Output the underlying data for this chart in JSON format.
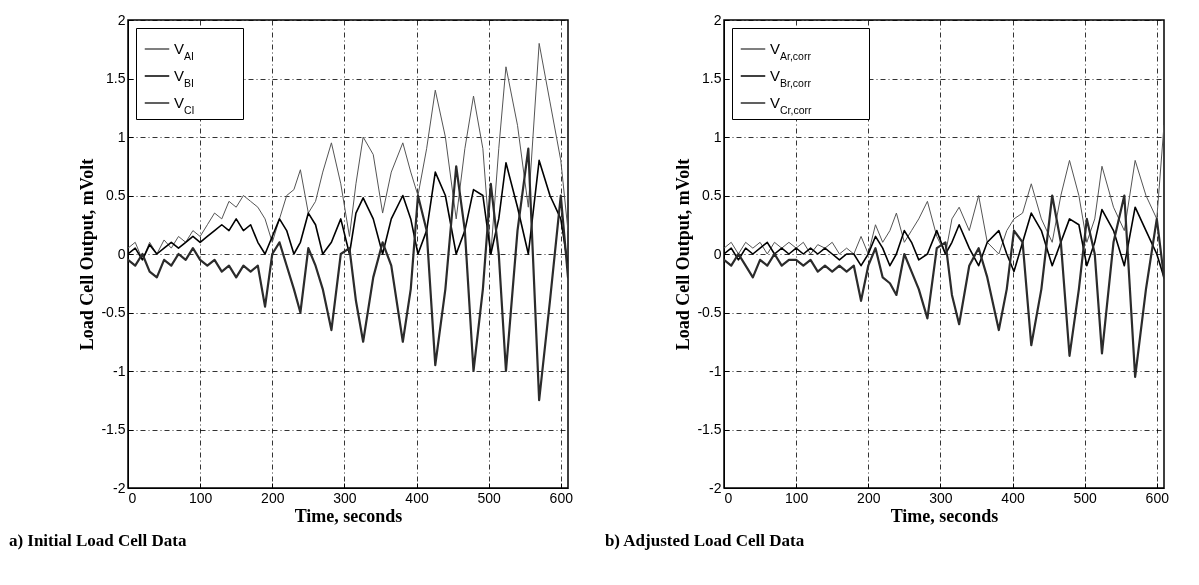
{
  "chart_data": [
    {
      "type": "line",
      "title": "a) Initial Load Cell Data",
      "xlabel": "Time, seconds",
      "ylabel": "Load Cell Output, mVolt",
      "xlim": [
        0,
        610
      ],
      "xticks": [
        0,
        100,
        200,
        300,
        400,
        500,
        600
      ],
      "ylim": [
        -2,
        2
      ],
      "yticks": [
        -2,
        -1.5,
        -1,
        -0.5,
        0,
        0.5,
        1,
        1.5,
        2
      ],
      "grid": true,
      "legend": "top left",
      "x": [
        0,
        10,
        20,
        30,
        40,
        50,
        60,
        70,
        80,
        90,
        100,
        110,
        120,
        130,
        140,
        150,
        160,
        170,
        180,
        190,
        200,
        210,
        220,
        230,
        239,
        250,
        260,
        270,
        282,
        295,
        307,
        316,
        326,
        340,
        353,
        365,
        381,
        392,
        402,
        414,
        426,
        440,
        455,
        467,
        479,
        492,
        503,
        514,
        524,
        540,
        555,
        570,
        585,
        600,
        610
      ],
      "series": [
        {
          "name": "V$_{AI}$",
          "color": "#555555",
          "values": [
            0.05,
            0.1,
            -0.05,
            0.1,
            0.0,
            0.12,
            0.05,
            0.15,
            0.1,
            0.2,
            0.15,
            0.25,
            0.35,
            0.3,
            0.45,
            0.4,
            0.5,
            0.45,
            0.4,
            0.3,
            0.1,
            0.3,
            0.5,
            0.55,
            0.72,
            0.35,
            0.45,
            0.7,
            0.95,
            0.6,
            0.15,
            0.6,
            1.0,
            0.85,
            0.35,
            0.7,
            0.95,
            0.7,
            0.5,
            0.9,
            1.4,
            1.0,
            0.3,
            0.9,
            1.35,
            0.9,
            0.0,
            0.9,
            1.6,
            1.1,
            0.4,
            1.8,
            1.3,
            0.8,
            0.2
          ]
        },
        {
          "name": "V$_{BI}$",
          "color": "#000000",
          "values": [
            0.0,
            0.05,
            -0.05,
            0.08,
            0.0,
            0.05,
            0.1,
            0.05,
            0.1,
            0.15,
            0.1,
            0.15,
            0.2,
            0.25,
            0.2,
            0.3,
            0.2,
            0.25,
            0.1,
            0.0,
            0.15,
            0.3,
            0.2,
            0.0,
            0.1,
            0.35,
            0.25,
            0.0,
            0.1,
            0.3,
            0.0,
            0.35,
            0.48,
            0.3,
            0.0,
            0.3,
            0.5,
            0.3,
            0.0,
            0.2,
            0.7,
            0.5,
            0.0,
            0.2,
            0.55,
            0.5,
            0.0,
            0.3,
            0.78,
            0.4,
            0.0,
            0.8,
            0.5,
            0.3,
            -0.1
          ]
        },
        {
          "name": "V$_{CI}$",
          "color": "#2b2b2b",
          "values": [
            -0.05,
            -0.1,
            0.0,
            -0.15,
            -0.2,
            -0.05,
            -0.1,
            0.0,
            -0.05,
            0.05,
            -0.05,
            -0.1,
            -0.05,
            -0.15,
            -0.1,
            -0.2,
            -0.1,
            -0.15,
            -0.1,
            -0.45,
            0.0,
            0.1,
            -0.1,
            -0.3,
            -0.5,
            0.05,
            -0.1,
            -0.3,
            -0.65,
            0.0,
            0.05,
            -0.4,
            -0.75,
            -0.2,
            0.1,
            -0.1,
            -0.75,
            -0.3,
            0.5,
            0.2,
            -0.95,
            -0.3,
            0.75,
            0.2,
            -1.0,
            -0.3,
            0.6,
            0.0,
            -1.0,
            0.2,
            0.9,
            -1.25,
            -0.4,
            0.5,
            -0.2
          ]
        }
      ]
    },
    {
      "type": "line",
      "title": "b) Adjusted Load Cell Data",
      "xlabel": "Time, seconds",
      "ylabel": "Load Cell Output, mVolt",
      "xlim": [
        0,
        610
      ],
      "xticks": [
        0,
        100,
        200,
        300,
        400,
        500,
        600
      ],
      "ylim": [
        -2,
        2
      ],
      "yticks": [
        -2,
        -1.5,
        -1,
        -0.5,
        0,
        0.5,
        1,
        1.5,
        2
      ],
      "grid": true,
      "legend": "top left",
      "x": [
        0,
        10,
        20,
        30,
        40,
        50,
        60,
        70,
        80,
        90,
        100,
        110,
        120,
        130,
        140,
        150,
        160,
        170,
        180,
        190,
        200,
        210,
        220,
        230,
        239,
        250,
        260,
        270,
        282,
        295,
        307,
        316,
        326,
        340,
        353,
        365,
        381,
        392,
        402,
        414,
        426,
        440,
        455,
        467,
        479,
        492,
        503,
        514,
        524,
        540,
        555,
        570,
        585,
        600,
        610
      ],
      "series": [
        {
          "name": "V$_{Ar,corr}$",
          "color": "#555555",
          "values": [
            0.05,
            0.1,
            0.0,
            0.1,
            0.05,
            0.1,
            0.0,
            0.1,
            0.05,
            0.1,
            0.05,
            0.1,
            0.0,
            0.08,
            0.05,
            0.1,
            0.0,
            0.05,
            0.0,
            0.15,
            0.0,
            0.25,
            0.1,
            0.2,
            0.35,
            0.1,
            0.2,
            0.3,
            0.45,
            0.15,
            0.0,
            0.3,
            0.4,
            0.2,
            0.5,
            0.1,
            0.0,
            0.2,
            0.3,
            0.35,
            0.6,
            0.3,
            0.1,
            0.5,
            0.8,
            0.5,
            0.1,
            0.3,
            0.75,
            0.4,
            0.2,
            0.8,
            0.5,
            0.3,
            1.1
          ]
        },
        {
          "name": "V$_{Br,corr}$",
          "color": "#000000",
          "values": [
            0.0,
            0.05,
            -0.05,
            0.05,
            0.0,
            0.05,
            0.1,
            0.0,
            0.05,
            0.0,
            0.05,
            0.0,
            0.05,
            0.0,
            0.05,
            0.0,
            -0.05,
            0.0,
            0.0,
            -0.1,
            0.0,
            0.15,
            0.05,
            -0.1,
            0.0,
            0.2,
            0.1,
            -0.05,
            0.0,
            0.2,
            0.0,
            0.1,
            0.25,
            0.05,
            -0.1,
            0.1,
            0.2,
            0.0,
            -0.15,
            0.1,
            0.35,
            0.2,
            -0.1,
            0.1,
            0.3,
            0.25,
            -0.1,
            0.1,
            0.38,
            0.2,
            -0.1,
            0.4,
            0.2,
            0.0,
            -0.2
          ]
        },
        {
          "name": "V$_{Cr,corr}$",
          "color": "#2b2b2b",
          "values": [
            -0.05,
            -0.1,
            0.0,
            -0.1,
            -0.2,
            -0.05,
            -0.1,
            0.0,
            -0.1,
            -0.05,
            -0.05,
            -0.1,
            -0.05,
            -0.15,
            -0.1,
            -0.15,
            -0.1,
            -0.15,
            -0.1,
            -0.4,
            -0.1,
            0.05,
            -0.2,
            -0.25,
            -0.35,
            0.0,
            -0.15,
            -0.3,
            -0.55,
            0.05,
            0.1,
            -0.35,
            -0.6,
            -0.1,
            0.05,
            -0.2,
            -0.65,
            -0.3,
            0.2,
            0.1,
            -0.78,
            -0.3,
            0.5,
            0.1,
            -0.87,
            -0.3,
            0.3,
            0.0,
            -0.85,
            0.1,
            0.5,
            -1.05,
            -0.3,
            0.3,
            -0.2
          ]
        }
      ]
    }
  ]
}
